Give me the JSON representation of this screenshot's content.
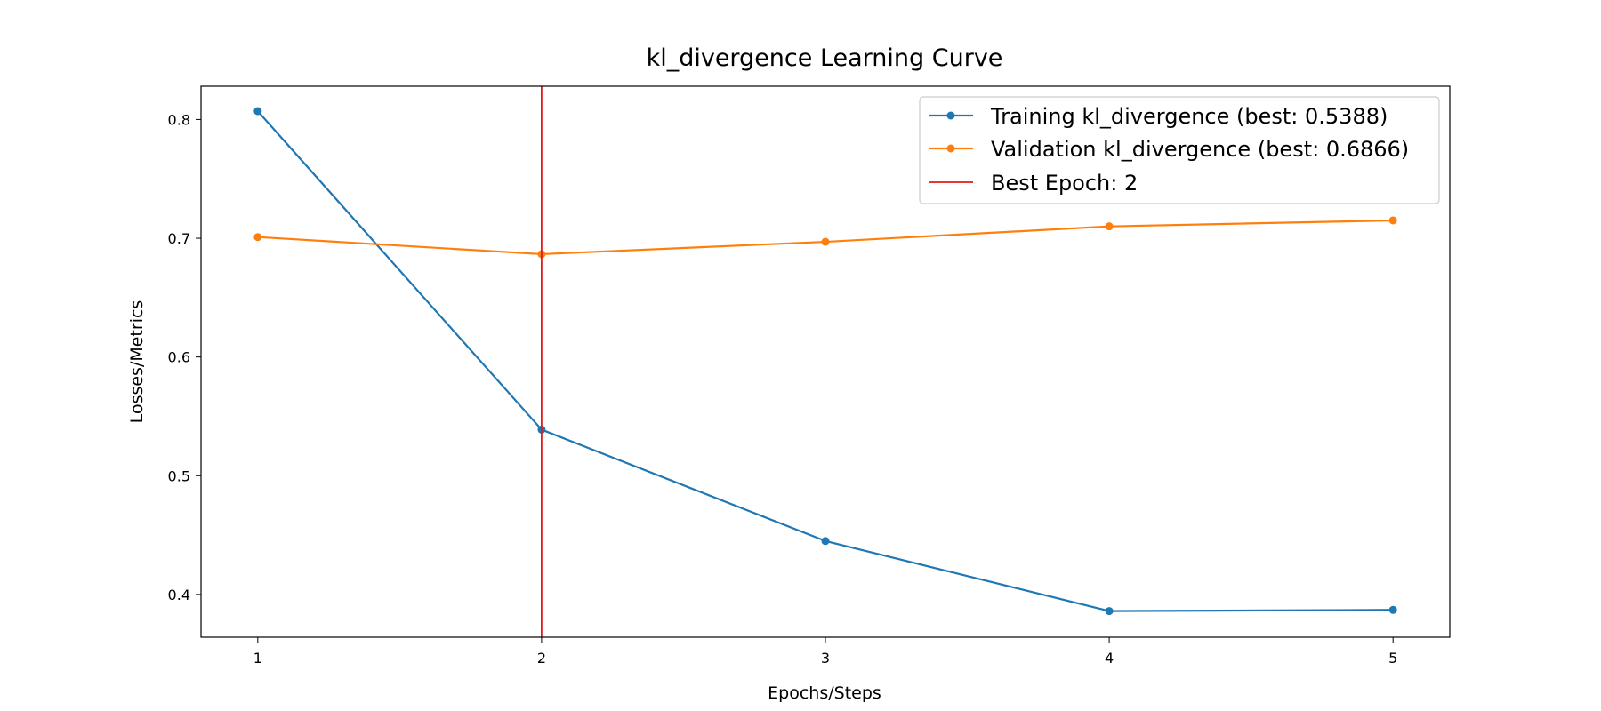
{
  "chart_data": {
    "type": "line",
    "title": "kl_divergence Learning Curve",
    "xlabel": "Epochs/Steps",
    "ylabel": "Losses/Metrics",
    "x": [
      1,
      2,
      3,
      4,
      5
    ],
    "xticks": [
      "1",
      "2",
      "3",
      "4",
      "5"
    ],
    "yticks": [
      "0.4",
      "0.5",
      "0.6",
      "0.7",
      "0.8"
    ],
    "xlim": [
      0.8,
      5.2
    ],
    "ylim": [
      0.364,
      0.828
    ],
    "grid": false,
    "legend_position": "top-right",
    "series": [
      {
        "name": "Training kl_divergence (best: 0.5388)",
        "color": "#1f77b4",
        "values": [
          0.807,
          0.5388,
          0.445,
          0.386,
          0.387
        ]
      },
      {
        "name": "Validation kl_divergence (best: 0.6866)",
        "color": "#ff7f0e",
        "values": [
          0.701,
          0.6866,
          0.697,
          0.71,
          0.715
        ]
      }
    ],
    "vline": {
      "name": "Best Epoch: 2",
      "x": 2,
      "color": "#e41a1c"
    }
  }
}
